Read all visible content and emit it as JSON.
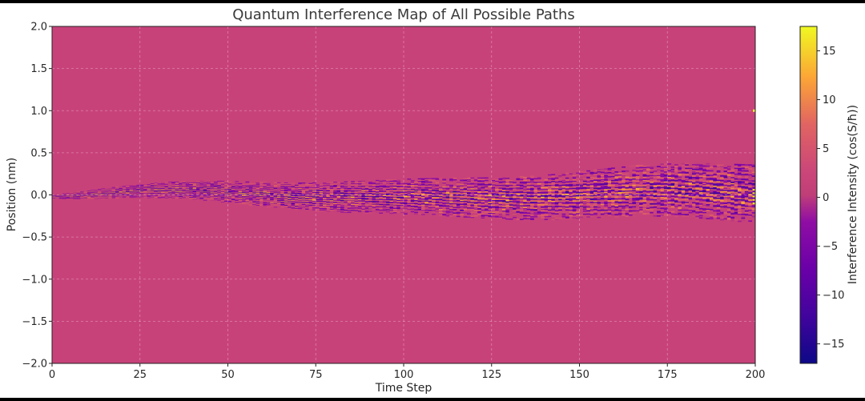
{
  "chart_data": {
    "type": "heatmap",
    "title": "Quantum Interference Map of All Possible Paths",
    "xlabel": "Time Step",
    "ylabel": "Position (nm)",
    "colorbar_label": "Interference Intensity (cos(S/ħ))",
    "colormap": "plasma",
    "xlim": [
      0,
      200
    ],
    "ylim": [
      -2.0,
      2.0
    ],
    "clim": [
      -17,
      17.5
    ],
    "background_value": 0,
    "xticks": [
      "0",
      "25",
      "50",
      "75",
      "100",
      "125",
      "150",
      "175",
      "200"
    ],
    "xtick_values": [
      0,
      25,
      50,
      75,
      100,
      125,
      150,
      175,
      200
    ],
    "yticks": [
      "2.0",
      "1.5",
      "1.0",
      "0.5",
      "0.0",
      "−0.5",
      "−1.0",
      "−1.5",
      "−2.0"
    ],
    "ytick_values": [
      2.0,
      1.5,
      1.0,
      0.5,
      0.0,
      -0.5,
      -1.0,
      -1.5,
      -2.0
    ],
    "cticks": [
      "15",
      "10",
      "5",
      "0",
      "−5",
      "−10",
      "−15"
    ],
    "ctick_values": [
      15,
      10,
      5,
      0,
      -5,
      -10,
      -15
    ],
    "grid": true,
    "band": {
      "description_values": "interference band centered near position 0, widening with time step",
      "halfwidth_start": 0.02,
      "halfwidth_end": 0.35,
      "intensity_range": [
        -17,
        17.5
      ]
    },
    "outlier": {
      "time_step": 200,
      "position": 1.0,
      "intensity": 17.5
    }
  }
}
